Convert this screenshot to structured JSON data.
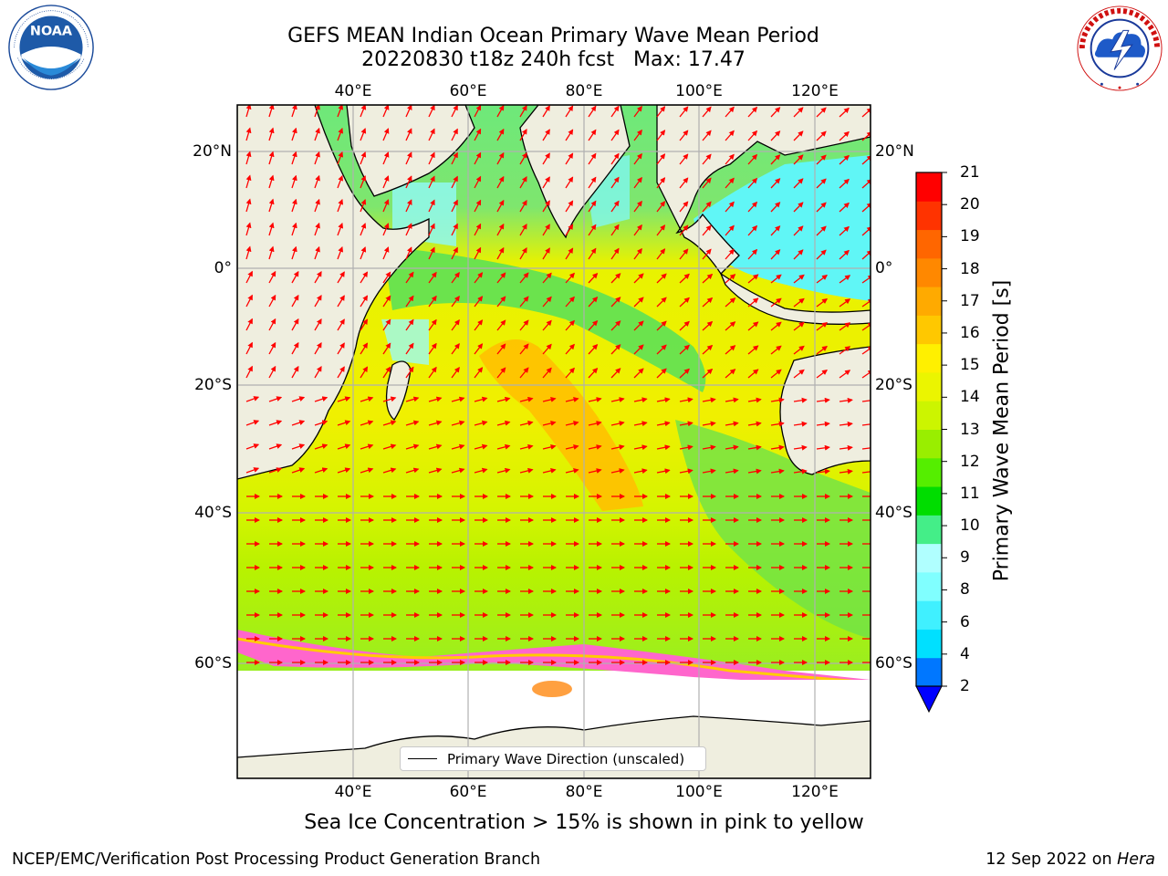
{
  "header": {
    "title_line1": "GEFS MEAN Indian Ocean Primary Wave Mean Period",
    "title_line2": "20220830 t18z 240h fcst   Max: 17.47"
  },
  "logos": {
    "left": {
      "icon": "noaa-logo",
      "text": "NOAA",
      "ring_text": "NATIONAL OCEANIC AND ATMOSPHERIC ADMINISTRATION · U.S. DEPARTMENT OF COMMERCE"
    },
    "right": {
      "icon": "nws-logo",
      "ring_text": "NATIONAL WEATHER SERVICE"
    }
  },
  "map": {
    "lon_labels": [
      "40°E",
      "60°E",
      "80°E",
      "100°E",
      "120°E"
    ],
    "lat_labels": [
      "20°N",
      "0°",
      "20°S",
      "40°S",
      "60°S"
    ],
    "arrow_color": "#ff0000",
    "land_color": "#efeedf",
    "ice_free_color": "#ffffff"
  },
  "colorbar": {
    "label": "Primary Wave Mean Period [s]",
    "ticks": [
      "21",
      "20",
      "19",
      "18",
      "17",
      "16",
      "15",
      "14",
      "13",
      "12",
      "11",
      "10",
      "9",
      "8",
      "6",
      "4",
      "2"
    ],
    "colors_bottom_to_top": [
      "#0077ff",
      "#00e0ff",
      "#40f0ff",
      "#80ffff",
      "#b0ffff",
      "#44ee88",
      "#00dd00",
      "#55ee00",
      "#99ee00",
      "#ccf500",
      "#ebf500",
      "#fff000",
      "#ffc800",
      "#ffaa00",
      "#ff8800",
      "#ff6600",
      "#ff3300",
      "#ff0000"
    ],
    "under_color": "#0000ff"
  },
  "legend": {
    "label": "Primary Wave Direction (unscaled)"
  },
  "subtitle": "Sea Ice Concentration > 15% is shown in pink to yellow",
  "footer": {
    "left": "NCEP/EMC/Verification Post Processing Product Generation Branch",
    "date": "12 Sep 2022 on ",
    "machine": "Hera"
  }
}
